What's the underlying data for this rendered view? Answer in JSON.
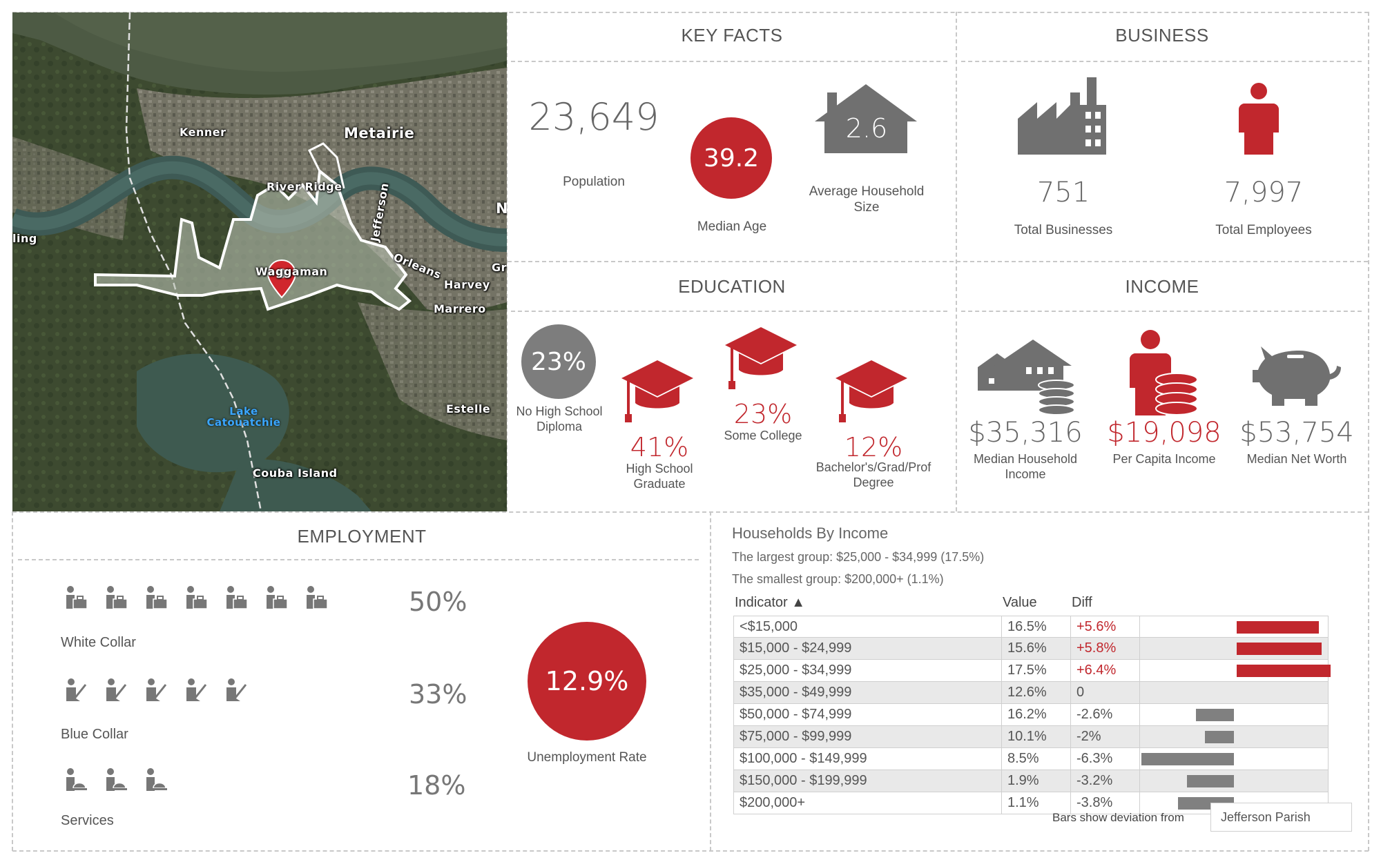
{
  "map": {
    "labels": [
      "Kenner",
      "Metairie",
      "River Ridge",
      "Waggaman",
      "Jefferson",
      "Orleans",
      "Harvey",
      "Marrero",
      "Estelle",
      "Couba Island",
      "Lake Catouatchie",
      "ling",
      "N",
      "Gr"
    ]
  },
  "key_facts": {
    "title": "KEY FACTS",
    "population": "23,649",
    "population_label": "Population",
    "median_age": "39.2",
    "median_age_label": "Median Age",
    "household_size": "2.6",
    "household_size_label": "Average Household Size"
  },
  "business": {
    "title": "BUSINESS",
    "total_businesses": "751",
    "total_businesses_label": "Total Businesses",
    "total_employees": "7,997",
    "total_employees_label": "Total Employees"
  },
  "education": {
    "title": "EDUCATION",
    "no_hs": "23%",
    "no_hs_label": "No High School Diploma",
    "hs_grad": "41%",
    "hs_grad_label": "High School Graduate",
    "some_college": "23%",
    "some_college_label": "Some College",
    "bachelors": "12%",
    "bachelors_label": "Bachelor's/Grad/Prof Degree"
  },
  "income": {
    "title": "INCOME",
    "median_household": "$35,316",
    "median_household_label": "Median Household Income",
    "per_capita": "$19,098",
    "per_capita_label": "Per Capita Income",
    "median_net_worth": "$53,754",
    "median_net_worth_label": "Median Net Worth"
  },
  "employment": {
    "title": "EMPLOYMENT",
    "white_collar_label": "White Collar",
    "white_collar_pct": "50%",
    "white_collar_icons": 7,
    "blue_collar_label": "Blue Collar",
    "blue_collar_pct": "33%",
    "blue_collar_icons": 5,
    "services_label": "Services",
    "services_pct": "18%",
    "services_icons": 3,
    "unemployment_rate": "12.9%",
    "unemployment_label": "Unemployment Rate"
  },
  "households_by_income": {
    "title": "Households By Income",
    "largest": "The largest group: $25,000 - $34,999 (17.5%)",
    "smallest": "The smallest group: $200,000+ (1.1%)",
    "headers": {
      "indicator": "Indicator ▲",
      "value": "Value",
      "diff": "Diff"
    },
    "rows": [
      {
        "indicator": "<$15,000",
        "value": "16.5%",
        "diff": "+5.6%",
        "diff_num": 5.6
      },
      {
        "indicator": "$15,000 - $24,999",
        "value": "15.6%",
        "diff": "+5.8%",
        "diff_num": 5.8
      },
      {
        "indicator": "$25,000 - $34,999",
        "value": "17.5%",
        "diff": "+6.4%",
        "diff_num": 6.4
      },
      {
        "indicator": "$35,000 - $49,999",
        "value": "12.6%",
        "diff": "0",
        "diff_num": 0
      },
      {
        "indicator": "$50,000 - $74,999",
        "value": "16.2%",
        "diff": "-2.6%",
        "diff_num": -2.6
      },
      {
        "indicator": "$75,000 - $99,999",
        "value": "10.1%",
        "diff": "-2%",
        "diff_num": -2
      },
      {
        "indicator": "$100,000 - $149,999",
        "value": "8.5%",
        "diff": "-6.3%",
        "diff_num": -6.3
      },
      {
        "indicator": "$150,000 - $199,999",
        "value": "1.9%",
        "diff": "-3.2%",
        "diff_num": -3.2
      },
      {
        "indicator": "$200,000+",
        "value": "1.1%",
        "diff": "-3.8%",
        "diff_num": -3.8
      }
    ],
    "bars_note": "Bars show deviation from",
    "comparison_area": "Jefferson Parish",
    "colors": {
      "positive": "#c1272d",
      "negative": "#808080"
    }
  }
}
